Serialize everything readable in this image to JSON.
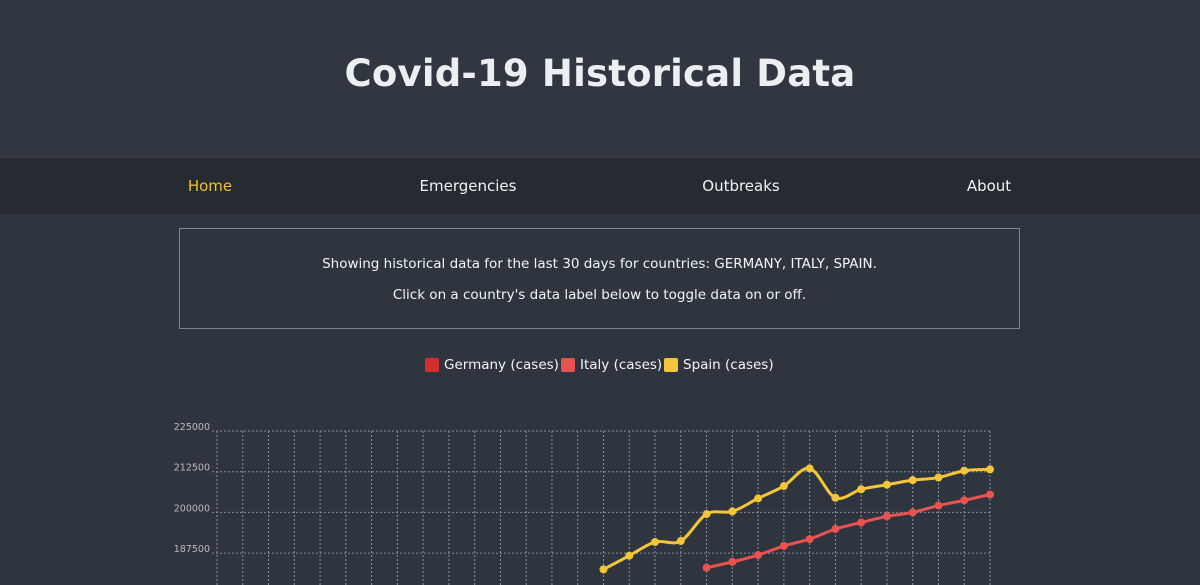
{
  "header": {
    "title": "Covid-19 Historical Data"
  },
  "nav": {
    "items": [
      {
        "label": "Home",
        "active": true
      },
      {
        "label": "Emergencies",
        "active": false
      },
      {
        "label": "Outbreaks",
        "active": false
      },
      {
        "label": "About",
        "active": false
      }
    ]
  },
  "info": {
    "line1": "Showing historical data for the last 30 days for countries: GERMANY, ITALY, SPAIN.",
    "line2": "Click on a country's data label below to toggle data on or off."
  },
  "colors": {
    "background": "#2f353f",
    "navbar": "#262b32",
    "accent": "#f0c02f",
    "germany": "#d62e2e",
    "italy": "#e9534f",
    "spain": "#f3c63a",
    "grid": "#8a9099"
  },
  "chart_data": {
    "type": "line",
    "title": "",
    "xlabel": "",
    "ylabel": "",
    "ylim": [
      182500,
      225000
    ],
    "y_ticks": [
      "225000",
      "212500",
      "200000",
      "187500"
    ],
    "grid": true,
    "legend_position": "top-center",
    "series": [
      {
        "name": "Germany (cases)",
        "color": "#d62e2e",
        "values": []
      },
      {
        "name": "Italy (cases)",
        "color": "#e9534f",
        "values": [
          null,
          null,
          null,
          null,
          null,
          null,
          null,
          null,
          null,
          null,
          null,
          null,
          null,
          null,
          null,
          null,
          null,
          null,
          null,
          183000,
          184800,
          186900,
          189700,
          191800,
          194900,
          196900,
          198800,
          200000,
          202100,
          203700,
          205500
        ]
      },
      {
        "name": "Spain (cases)",
        "color": "#f3c63a",
        "values": [
          null,
          null,
          null,
          null,
          null,
          null,
          null,
          null,
          null,
          null,
          null,
          null,
          null,
          null,
          null,
          182500,
          186700,
          190900,
          191200,
          199500,
          200300,
          204300,
          208100,
          213500,
          204500,
          207100,
          208500,
          209900,
          210700,
          212800,
          213200
        ]
      }
    ]
  }
}
